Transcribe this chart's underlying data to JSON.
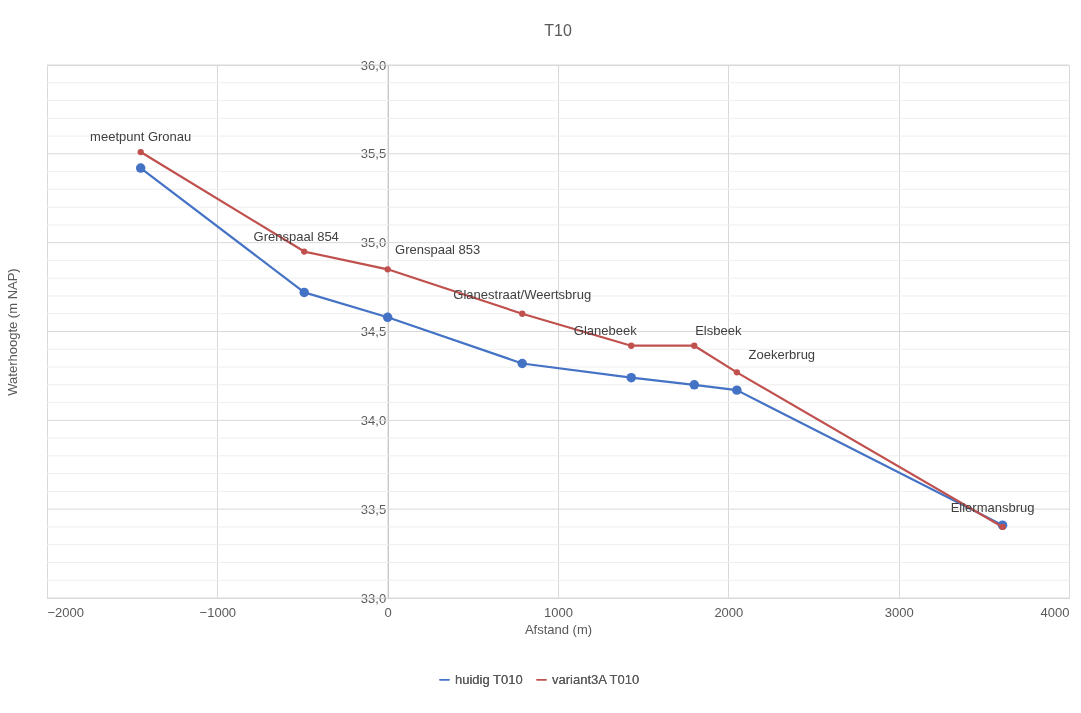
{
  "chart_data": {
    "type": "line",
    "title": "T10",
    "xlabel": "Afstand (m)",
    "ylabel": "Waterhoogte (m NAP)",
    "x": [
      -1450,
      -490,
      0,
      790,
      1430,
      1800,
      2050,
      3610
    ],
    "series": [
      {
        "name": "huidig T010",
        "color": "#4472c4",
        "values": [
          35.42,
          34.72,
          34.58,
          34.32,
          34.24,
          34.2,
          34.17,
          33.41
        ]
      },
      {
        "name": "variant3A T010",
        "color": "#c0504d",
        "values": [
          35.51,
          34.95,
          34.85,
          34.6,
          34.42,
          34.42,
          34.27,
          33.4
        ]
      }
    ],
    "annotations": [
      {
        "text": "meetpunt  Gronau",
        "x": -1450,
        "y": 35.51
      },
      {
        "text": "Grenspaal 854",
        "x": -490,
        "y": 34.95
      },
      {
        "text": "Grenspaal 853",
        "x": 0,
        "y": 34.85
      },
      {
        "text": "Glanestraat/Weertsbrug",
        "x": 790,
        "y": 34.6
      },
      {
        "text": "Glanebeek",
        "x": 1430,
        "y": 34.42
      },
      {
        "text": "Elsbeek",
        "x": 1800,
        "y": 34.42
      },
      {
        "text": "Zoekerbrug",
        "x": 2050,
        "y": 34.27
      },
      {
        "text": "Ellermansbrug",
        "x": 3610,
        "y": 33.4
      }
    ],
    "xlim": [
      -2000,
      4000
    ],
    "xticks": [
      -2000,
      -1000,
      0,
      1000,
      2000,
      3000,
      4000
    ],
    "ylim": [
      33,
      36
    ],
    "yticks": [
      {
        "value": 33,
        "label": "33,0"
      },
      {
        "value": 33.1,
        "label": null
      },
      {
        "value": 33.2,
        "label": null
      },
      {
        "value": 33.3,
        "label": null
      },
      {
        "value": 33.4,
        "label": null
      },
      {
        "value": 33.5,
        "label": "33,5"
      },
      {
        "value": 33.6,
        "label": null
      },
      {
        "value": 33.7,
        "label": null
      },
      {
        "value": 33.8,
        "label": null
      },
      {
        "value": 33.9,
        "label": null
      },
      {
        "value": 34,
        "label": "34,0"
      },
      {
        "value": 34.1,
        "label": null
      },
      {
        "value": 34.2,
        "label": null
      },
      {
        "value": 34.3,
        "label": null
      },
      {
        "value": 34.4,
        "label": null
      },
      {
        "value": 34.5,
        "label": "34,5"
      },
      {
        "value": 34.6,
        "label": null
      },
      {
        "value": 34.7,
        "label": null
      },
      {
        "value": 34.8,
        "label": null
      },
      {
        "value": 34.9,
        "label": null
      },
      {
        "value": 35,
        "label": "35,0"
      },
      {
        "value": 35.1,
        "label": null
      },
      {
        "value": 35.2,
        "label": null
      },
      {
        "value": 35.3,
        "label": null
      },
      {
        "value": 35.4,
        "label": null
      },
      {
        "value": 35.5,
        "label": "35,5"
      },
      {
        "value": 35.6,
        "label": null
      },
      {
        "value": 35.7,
        "label": null
      },
      {
        "value": 35.8,
        "label": null
      },
      {
        "value": 35.9,
        "label": null
      },
      {
        "value": 36,
        "label": "36,0"
      }
    ],
    "grid": true,
    "legend": "bottom",
    "marker": "circle",
    "line_style": "solid"
  }
}
